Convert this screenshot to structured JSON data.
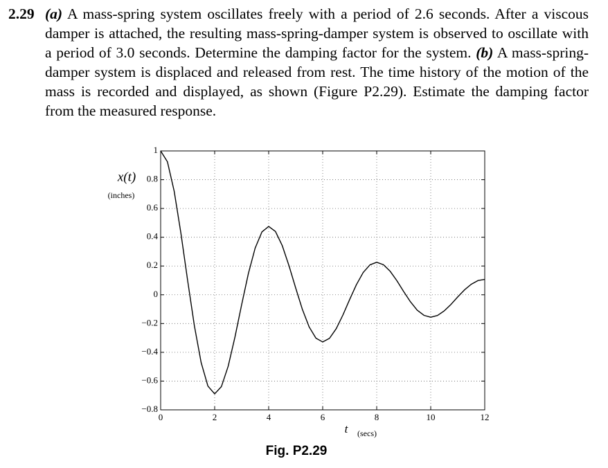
{
  "problem": {
    "number": "2.29",
    "part_a": {
      "label": "(a)",
      "text": "A mass-spring system oscillates freely with a period of 2.6 seconds. After a viscous damper is attached, the resulting mass-spring-damper system is observed to oscillate with a period of 3.0 seconds. Determine the damping factor for the system."
    },
    "part_b": {
      "label": "(b)",
      "text": "A mass-spring-damper system is displaced and released from rest. The time history of the motion of the mass is recorded and displayed, as shown (Figure P2.29). Estimate the damping factor from the measured response."
    }
  },
  "chart_data": {
    "type": "line",
    "caption": "Fig. P2.29",
    "ylabel": "x(t)",
    "ylabel_unit": "(inches)",
    "xlabel": "t",
    "xlabel_unit": "(secs)",
    "color": "#000000",
    "grid": true,
    "xlim": [
      0,
      12
    ],
    "xticks": [
      0,
      2,
      4,
      6,
      8,
      10,
      12
    ],
    "ylim": [
      -0.8,
      1
    ],
    "yticks": [
      {
        "value": -0.8,
        "label": "−0.8"
      },
      {
        "value": -0.6,
        "label": "−0.6"
      },
      {
        "value": -0.4,
        "label": "−0.4"
      },
      {
        "value": -0.2,
        "label": "−0.2"
      },
      0,
      0.2,
      0.4,
      0.6,
      0.8,
      1
    ],
    "x": [
      0,
      0.25,
      0.5,
      0.75,
      1,
      1.25,
      1.5,
      1.75,
      2,
      2.25,
      2.5,
      2.75,
      3,
      3.25,
      3.5,
      3.75,
      4,
      4.25,
      4.5,
      4.75,
      5,
      5.25,
      5.5,
      5.75,
      6,
      6.25,
      6.5,
      6.75,
      7,
      7.25,
      7.5,
      7.75,
      8,
      8.25,
      8.5,
      8.75,
      9,
      9.25,
      9.5,
      9.75,
      10,
      10.25,
      10.5,
      10.75,
      11,
      11.25,
      11.5,
      11.75,
      12
    ],
    "values": [
      1,
      0.925,
      0.721,
      0.428,
      0.098,
      -0.217,
      -0.472,
      -0.635,
      -0.689,
      -0.638,
      -0.497,
      -0.295,
      -0.068,
      0.149,
      0.325,
      0.437,
      0.475,
      0.44,
      0.343,
      0.203,
      0.047,
      -0.103,
      -0.224,
      -0.302,
      -0.328,
      -0.303,
      -0.236,
      -0.14,
      -0.032,
      0.071,
      0.155,
      0.208,
      0.226,
      0.209,
      0.163,
      0.097,
      0.022,
      -0.049,
      -0.107,
      -0.143,
      -0.156,
      -0.144,
      -0.112,
      -0.067,
      -0.015,
      0.034,
      0.073,
      0.099,
      0.107
    ]
  }
}
